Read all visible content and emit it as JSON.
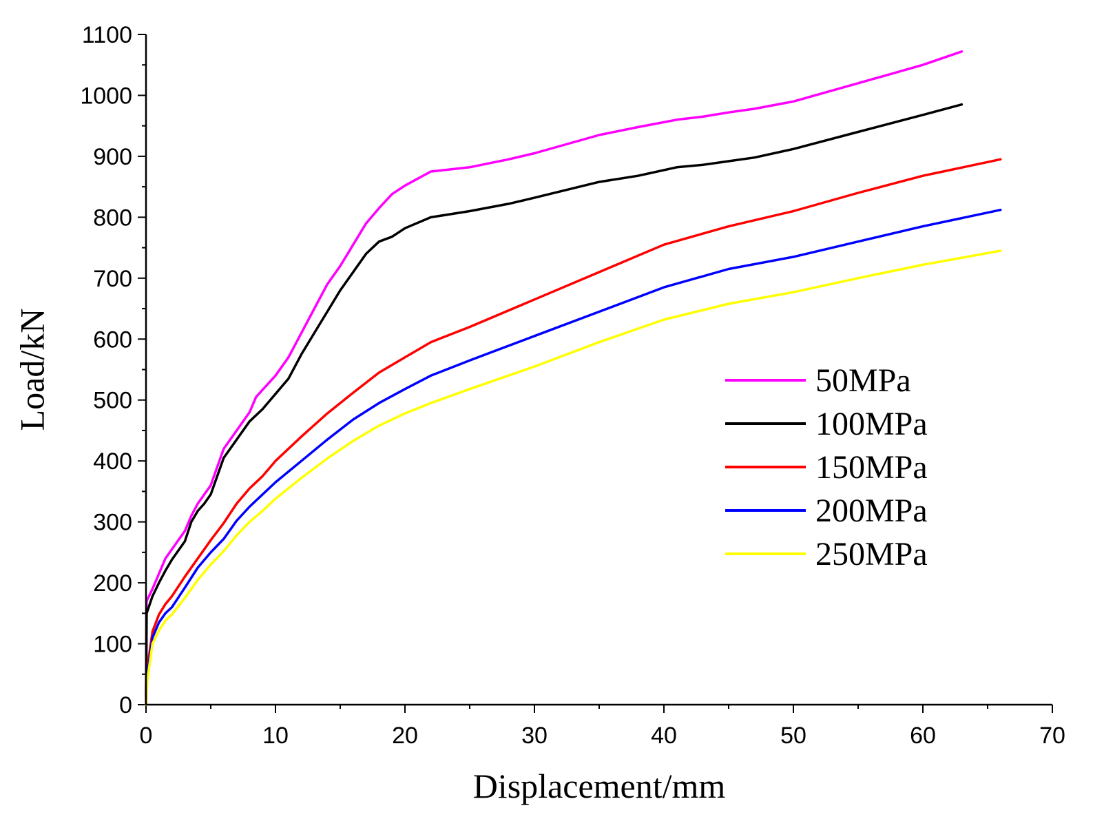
{
  "chart_data": {
    "type": "line",
    "title": "",
    "xlabel": "Displacement/mm",
    "ylabel": "Load/kN",
    "xlim": [
      0,
      70
    ],
    "ylim": [
      0,
      1100
    ],
    "xticks": [
      0,
      10,
      20,
      30,
      40,
      50,
      60,
      70
    ],
    "yticks": [
      0,
      100,
      200,
      300,
      400,
      500,
      600,
      700,
      800,
      900,
      1000,
      1100
    ],
    "grid": false,
    "legend_position": "center-right",
    "series": [
      {
        "name": "50MPa",
        "color": "#ff00ff",
        "points": [
          [
            0,
            0
          ],
          [
            0.05,
            170
          ],
          [
            0.5,
            190
          ],
          [
            1,
            215
          ],
          [
            1.5,
            240
          ],
          [
            2,
            255
          ],
          [
            3,
            285
          ],
          [
            3.5,
            310
          ],
          [
            4,
            330
          ],
          [
            4.5,
            345
          ],
          [
            5,
            360
          ],
          [
            5.5,
            390
          ],
          [
            6,
            420
          ],
          [
            7,
            450
          ],
          [
            8,
            480
          ],
          [
            8.5,
            505
          ],
          [
            10,
            540
          ],
          [
            11,
            570
          ],
          [
            12,
            610
          ],
          [
            13,
            650
          ],
          [
            14,
            690
          ],
          [
            15,
            720
          ],
          [
            16,
            755
          ],
          [
            17,
            790
          ],
          [
            18,
            815
          ],
          [
            19,
            838
          ],
          [
            20,
            852
          ],
          [
            22,
            875
          ],
          [
            25,
            882
          ],
          [
            28,
            895
          ],
          [
            30,
            905
          ],
          [
            35,
            935
          ],
          [
            38,
            948
          ],
          [
            41,
            960
          ],
          [
            43,
            965
          ],
          [
            45,
            972
          ],
          [
            47,
            978
          ],
          [
            50,
            990
          ],
          [
            55,
            1020
          ],
          [
            60,
            1050
          ],
          [
            63,
            1072
          ]
        ]
      },
      {
        "name": "100MPa",
        "color": "#000000",
        "points": [
          [
            0,
            0
          ],
          [
            0.05,
            150
          ],
          [
            0.5,
            178
          ],
          [
            1,
            200
          ],
          [
            1.5,
            220
          ],
          [
            2,
            238
          ],
          [
            3,
            268
          ],
          [
            3.5,
            300
          ],
          [
            4,
            318
          ],
          [
            4.5,
            330
          ],
          [
            5,
            345
          ],
          [
            5.5,
            375
          ],
          [
            6,
            405
          ],
          [
            7,
            435
          ],
          [
            8,
            465
          ],
          [
            9,
            485
          ],
          [
            10,
            510
          ],
          [
            11,
            535
          ],
          [
            12,
            575
          ],
          [
            13,
            610
          ],
          [
            14,
            645
          ],
          [
            15,
            680
          ],
          [
            16,
            710
          ],
          [
            17,
            740
          ],
          [
            18,
            760
          ],
          [
            19,
            768
          ],
          [
            20,
            782
          ],
          [
            22,
            800
          ],
          [
            25,
            810
          ],
          [
            28,
            822
          ],
          [
            30,
            832
          ],
          [
            35,
            858
          ],
          [
            38,
            868
          ],
          [
            41,
            882
          ],
          [
            43,
            886
          ],
          [
            45,
            892
          ],
          [
            47,
            898
          ],
          [
            50,
            912
          ],
          [
            55,
            940
          ],
          [
            60,
            968
          ],
          [
            63,
            985
          ]
        ]
      },
      {
        "name": "150MPa",
        "color": "#ff0000",
        "points": [
          [
            0,
            0
          ],
          [
            0.1,
            60
          ],
          [
            0.5,
            120
          ],
          [
            1,
            148
          ],
          [
            1.5,
            165
          ],
          [
            2,
            178
          ],
          [
            3,
            210
          ],
          [
            4,
            240
          ],
          [
            5,
            270
          ],
          [
            6,
            298
          ],
          [
            7,
            330
          ],
          [
            8,
            355
          ],
          [
            9,
            375
          ],
          [
            10,
            400
          ],
          [
            12,
            440
          ],
          [
            14,
            478
          ],
          [
            16,
            512
          ],
          [
            18,
            545
          ],
          [
            20,
            570
          ],
          [
            22,
            595
          ],
          [
            25,
            620
          ],
          [
            30,
            665
          ],
          [
            35,
            710
          ],
          [
            40,
            755
          ],
          [
            45,
            785
          ],
          [
            50,
            810
          ],
          [
            55,
            840
          ],
          [
            60,
            868
          ],
          [
            66,
            895
          ]
        ]
      },
      {
        "name": "200MPa",
        "color": "#0000ff",
        "points": [
          [
            0,
            0
          ],
          [
            0.1,
            50
          ],
          [
            0.5,
            110
          ],
          [
            1,
            135
          ],
          [
            1.5,
            150
          ],
          [
            2,
            160
          ],
          [
            3,
            192
          ],
          [
            4,
            225
          ],
          [
            5,
            250
          ],
          [
            6,
            272
          ],
          [
            7,
            302
          ],
          [
            8,
            325
          ],
          [
            9,
            345
          ],
          [
            10,
            365
          ],
          [
            12,
            400
          ],
          [
            14,
            435
          ],
          [
            16,
            468
          ],
          [
            18,
            495
          ],
          [
            20,
            518
          ],
          [
            22,
            540
          ],
          [
            25,
            565
          ],
          [
            30,
            605
          ],
          [
            35,
            645
          ],
          [
            40,
            685
          ],
          [
            45,
            715
          ],
          [
            50,
            735
          ],
          [
            55,
            760
          ],
          [
            60,
            785
          ],
          [
            66,
            812
          ]
        ]
      },
      {
        "name": "250MPa",
        "color": "#ffff00",
        "points": [
          [
            0,
            0
          ],
          [
            0.1,
            40
          ],
          [
            0.5,
            100
          ],
          [
            1,
            122
          ],
          [
            1.5,
            138
          ],
          [
            2,
            148
          ],
          [
            3,
            175
          ],
          [
            4,
            205
          ],
          [
            5,
            230
          ],
          [
            6,
            252
          ],
          [
            7,
            278
          ],
          [
            8,
            300
          ],
          [
            9,
            318
          ],
          [
            10,
            338
          ],
          [
            12,
            372
          ],
          [
            14,
            404
          ],
          [
            16,
            433
          ],
          [
            18,
            458
          ],
          [
            20,
            478
          ],
          [
            22,
            495
          ],
          [
            25,
            518
          ],
          [
            30,
            555
          ],
          [
            35,
            595
          ],
          [
            40,
            632
          ],
          [
            45,
            658
          ],
          [
            50,
            677
          ],
          [
            55,
            700
          ],
          [
            60,
            722
          ],
          [
            66,
            745
          ]
        ]
      }
    ]
  }
}
